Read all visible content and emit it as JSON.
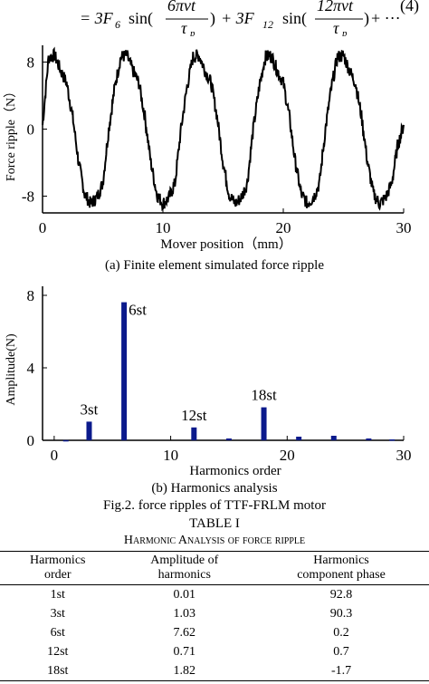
{
  "equation": {
    "prefix": "= 3F",
    "sub1": "6",
    "fn1": "sin(",
    "num1": "6πvt",
    "plus": "+ 3F",
    "sub2": "12",
    "fn2": "sin(",
    "num2": "12πvt",
    "den": "τ",
    "den_sub": "p",
    "close": ")",
    "tail": "+ ···",
    "number": "(4)"
  },
  "figure_a": {
    "caption": "(a) Finite element simulated force ripple",
    "chart_data": {
      "type": "line",
      "xlabel": "Mover position（mm）",
      "ylabel": "Force ripple（N）",
      "xlim": [
        0,
        30
      ],
      "ylim": [
        -10,
        10
      ],
      "x_ticks": [
        "0",
        "10",
        "20",
        "30"
      ],
      "y_ticks": [
        "8",
        "0",
        "-8"
      ],
      "period_mm": 6,
      "series": [
        {
          "x": [
            0,
            0.5,
            1,
            1.5,
            2,
            2.5,
            3,
            3.5,
            4,
            4.5,
            5,
            5.5,
            6,
            6.5,
            7,
            7.5,
            8,
            8.5,
            9,
            9.5,
            10,
            10.5,
            11,
            11.5,
            12,
            12.5,
            13,
            13.5,
            14,
            14.5,
            15,
            15.5,
            16,
            16.5,
            17,
            17.5,
            18,
            18.5,
            19,
            19.5,
            20,
            20.5,
            21,
            21.5,
            22,
            22.5,
            23,
            23.5,
            24,
            24.5,
            25,
            25.5,
            26,
            26.5,
            27,
            27.5,
            28,
            28.5,
            29,
            29.5,
            30
          ],
          "y": [
            0.5,
            8.5,
            8.8,
            7,
            5.5,
            1.5,
            -4,
            -7.8,
            -8.9,
            -8.2,
            -6.5,
            0,
            5,
            8.6,
            8.8,
            7,
            5.5,
            1.5,
            -4,
            -7.8,
            -8.9,
            -8.2,
            -6.5,
            0,
            5,
            8.6,
            8.8,
            7,
            5.5,
            1.5,
            -4,
            -7.8,
            -8.9,
            -8.2,
            -6.5,
            0,
            5,
            8.6,
            8.8,
            7,
            5.5,
            1.5,
            -4,
            -7.8,
            -8.9,
            -8.2,
            -6.5,
            0,
            5,
            8.6,
            8.8,
            7,
            5.5,
            1.5,
            -4,
            -7.8,
            -8.9,
            -8.2,
            -6.5,
            -2,
            0.5
          ]
        }
      ]
    }
  },
  "figure_b": {
    "caption": "(b) Harmonics analysis",
    "chart_data": {
      "type": "bar",
      "xlabel": "Harmonics order",
      "ylabel": "Amplitude(N)",
      "xlim": [
        -1,
        30
      ],
      "ylim": [
        0,
        8.5
      ],
      "x_ticks": [
        "0",
        "10",
        "20",
        "30"
      ],
      "y_ticks": [
        "0",
        "4",
        "8"
      ],
      "color": "#0b1a8c",
      "x": [
        1,
        3,
        6,
        12,
        15,
        18,
        21,
        24,
        27,
        29
      ],
      "values": [
        0.01,
        1.03,
        7.62,
        0.71,
        0.1,
        1.82,
        0.2,
        0.25,
        0.1,
        0.05
      ],
      "annotations": [
        {
          "x": 6,
          "text": "6st"
        },
        {
          "x": 3,
          "text": "3st"
        },
        {
          "x": 12,
          "text": "12st"
        },
        {
          "x": 18,
          "text": "18st"
        }
      ]
    }
  },
  "fig_caption": "Fig.2. force ripples of TTF-FRLM motor",
  "table": {
    "number": "TABLE I",
    "title": "Harmonic Analysis of force ripple",
    "headers": [
      [
        "Harmonics",
        "order"
      ],
      [
        "Amplitude of",
        "harmonics"
      ],
      [
        "Harmonics",
        "component  phase"
      ]
    ],
    "rows": [
      [
        "1st",
        "0.01",
        "92.8"
      ],
      [
        "3st",
        "1.03",
        "90.3"
      ],
      [
        "6st",
        "7.62",
        "0.2"
      ],
      [
        "12st",
        "0.71",
        "0.7"
      ],
      [
        "18st",
        "1.82",
        "-1.7"
      ]
    ]
  }
}
